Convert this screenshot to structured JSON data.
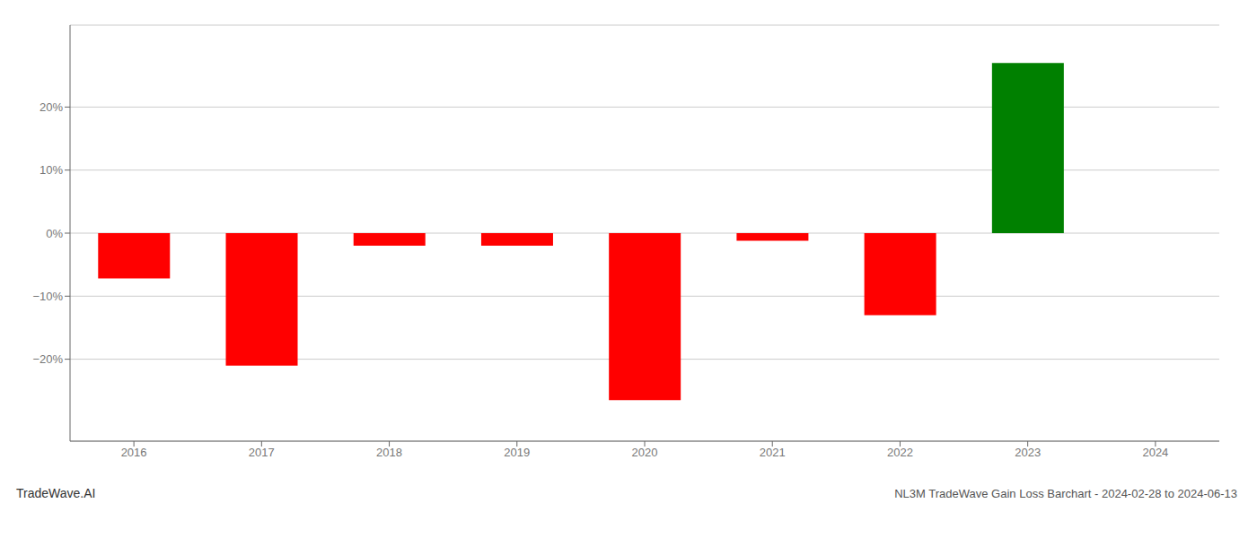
{
  "chart_data": {
    "type": "bar",
    "title": "NL3M TradeWave Gain Loss Barchart - 2024-02-28 to 2024-06-13",
    "watermark": "TradeWave.AI",
    "categories": [
      "2016",
      "2017",
      "2018",
      "2019",
      "2020",
      "2021",
      "2022",
      "2023",
      "2024"
    ],
    "values": [
      -0.072,
      -0.21,
      -0.02,
      -0.02,
      -0.265,
      -0.012,
      -0.13,
      0.27,
      0.0
    ],
    "colors": [
      "#ff0000",
      "#ff0000",
      "#ff0000",
      "#ff0000",
      "#ff0000",
      "#ff0000",
      "#ff0000",
      "#008000",
      "#ffffff"
    ],
    "ylim": [
      -0.33,
      0.33
    ],
    "yticks": [
      {
        "value": -0.2,
        "label": "−20%"
      },
      {
        "value": -0.1,
        "label": "−10%"
      },
      {
        "value": 0.0,
        "label": "0%"
      },
      {
        "value": 0.1,
        "label": "10%"
      },
      {
        "value": 0.2,
        "label": "20%"
      }
    ],
    "grid": true
  }
}
